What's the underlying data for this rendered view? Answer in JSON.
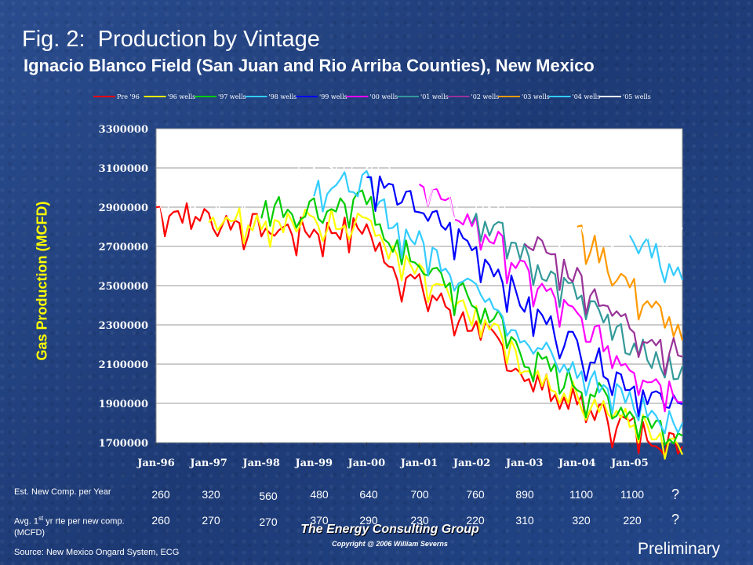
{
  "title": "Fig. 2:  Production by Vintage",
  "subtitle": "Ignacio Blanco Field (San Juan and Rio Arriba Counties), New Mexico",
  "chart_data": {
    "type": "line",
    "ylabel": "Gas Production (MCFD)",
    "xlabel": "",
    "ylim": [
      1700000,
      3300000
    ],
    "y_ticks": [
      "1700000",
      "1900000",
      "2100000",
      "2300000",
      "2500000",
      "2700000",
      "2900000",
      "3100000",
      "3300000"
    ],
    "x_ticks": [
      "Jan-96",
      "Jan-97",
      "Jan-98",
      "Jan-99",
      "Jan-00",
      "Jan-01",
      "Jan-02",
      "Jan-03",
      "Jan-04",
      "Jan-05"
    ],
    "x_range_months": [
      "Jan-96",
      "Jan-06"
    ],
    "grid": "horizontal",
    "legend_position": "top",
    "plot_background": "#ffffff",
    "series": [
      {
        "name": "Pre '96",
        "color": "#ff0000",
        "anchors": [
          [
            "Jan-96",
            2900000
          ],
          [
            "Jan-97",
            2850000
          ],
          [
            "Jan-98",
            2800000
          ],
          [
            "Jan-99",
            2780000
          ],
          [
            "Jan-00",
            2800000
          ],
          [
            "Jul-00",
            2600000
          ],
          [
            "Jan-01",
            2500000
          ],
          [
            "Jan-02",
            2300000
          ],
          [
            "Jul-02",
            2200000
          ],
          [
            "Jan-03",
            2050000
          ],
          [
            "Jan-04",
            1900000
          ],
          [
            "Jan-05",
            1790000
          ],
          [
            "Jan-06",
            1680000
          ]
        ]
      },
      {
        "name": "'96 wells",
        "color": "#ffff00",
        "anchors": [
          [
            "Jan-97",
            2880000
          ],
          [
            "Jan-98",
            2840000
          ],
          [
            "Jan-99",
            2830000
          ],
          [
            "Jan-00",
            2860000
          ],
          [
            "Jul-00",
            2650000
          ],
          [
            "Jan-01",
            2550000
          ],
          [
            "Jan-02",
            2350000
          ],
          [
            "Jul-02",
            2260000
          ],
          [
            "Jan-03",
            2080000
          ],
          [
            "Jan-04",
            1940000
          ],
          [
            "Jan-05",
            1820000
          ],
          [
            "Jan-06",
            1700000
          ]
        ]
      },
      {
        "name": "'97 wells",
        "color": "#00cc00",
        "anchors": [
          [
            "Jan-98",
            2900000
          ],
          [
            "Jan-99",
            2900000
          ],
          [
            "Jan-00",
            2930000
          ],
          [
            "Jul-00",
            2720000
          ],
          [
            "Jan-01",
            2620000
          ],
          [
            "Jan-02",
            2420000
          ],
          [
            "Jul-02",
            2330000
          ],
          [
            "Jan-03",
            2140000
          ],
          [
            "Jan-04",
            2000000
          ],
          [
            "Jan-05",
            1860000
          ],
          [
            "Jan-06",
            1740000
          ]
        ]
      },
      {
        "name": "'98 wells",
        "color": "#33ccff",
        "anchors": [
          [
            "Jan-99",
            3020000
          ],
          [
            "Jan-00",
            3020000
          ],
          [
            "Jul-00",
            2820000
          ],
          [
            "Jan-01",
            2720000
          ],
          [
            "Jan-02",
            2520000
          ],
          [
            "Jul-02",
            2420000
          ],
          [
            "Jan-03",
            2230000
          ],
          [
            "Jan-04",
            2060000
          ],
          [
            "Jan-05",
            1930000
          ],
          [
            "Jan-06",
            1800000
          ]
        ]
      },
      {
        "name": "'99 wells",
        "color": "#0000ff",
        "anchors": [
          [
            "Jan-00",
            3060000
          ],
          [
            "Jul-00",
            2980000
          ],
          [
            "Jan-01",
            2900000
          ],
          [
            "Jan-02",
            2700000
          ],
          [
            "Jul-02",
            2580000
          ],
          [
            "Jan-03",
            2400000
          ],
          [
            "Jan-04",
            2200000
          ],
          [
            "Jan-05",
            2000000
          ],
          [
            "Jan-06",
            1870000
          ]
        ]
      },
      {
        "name": "'00 wells",
        "color": "#ff00ff",
        "anchors": [
          [
            "Jan-01",
            3080000
          ],
          [
            "Jul-01",
            2900000
          ],
          [
            "Jan-02",
            2830000
          ],
          [
            "Jul-02",
            2720000
          ],
          [
            "Jan-03",
            2560000
          ],
          [
            "Jan-04",
            2330000
          ],
          [
            "Jan-05",
            2100000
          ],
          [
            "Jan-06",
            1950000
          ]
        ]
      },
      {
        "name": "'01 wells",
        "color": "#339999",
        "anchors": [
          [
            "Jan-02",
            2870000
          ],
          [
            "Jul-02",
            2780000
          ],
          [
            "Jan-03",
            2660000
          ],
          [
            "Jan-04",
            2450000
          ],
          [
            "Jan-05",
            2200000
          ],
          [
            "Jan-06",
            2050000
          ]
        ]
      },
      {
        "name": "'02 wells",
        "color": "#993399",
        "anchors": [
          [
            "Jan-03",
            2760000
          ],
          [
            "Jan-04",
            2550000
          ],
          [
            "Jan-05",
            2300000
          ],
          [
            "Jan-06",
            2150000
          ]
        ]
      },
      {
        "name": "'03 wells",
        "color": "#ff9900",
        "anchors": [
          [
            "Jan-04",
            2780000
          ],
          [
            "Jul-04",
            2650000
          ],
          [
            "Jan-05",
            2500000
          ],
          [
            "Jul-05",
            2380000
          ],
          [
            "Jan-06",
            2250000
          ]
        ]
      },
      {
        "name": "'04 wells",
        "color": "#33ccff",
        "anchors": [
          [
            "Jan-05",
            2700000
          ],
          [
            "Jul-05",
            2680000
          ],
          [
            "Jan-06",
            2520000
          ]
        ]
      },
      {
        "name": "'05 wells",
        "color": "#ffffff",
        "anchors": [
          [
            "Jan-96",
            2950000
          ],
          [
            "Jan-97",
            2950000
          ],
          [
            "Jan-98",
            3020000
          ],
          [
            "Jan-99",
            3150000
          ],
          [
            "Jan-00",
            3150000
          ],
          [
            "Jan-01",
            3050000
          ],
          [
            "Jan-02",
            2950000
          ],
          [
            "Jan-03",
            2850000
          ],
          [
            "Jan-04",
            2820000
          ],
          [
            "Jan-05",
            2800000
          ],
          [
            "Jan-06",
            2770000
          ]
        ]
      }
    ]
  },
  "table": {
    "row1_label": "Est. New Comp. per Year",
    "row2_label": "Avg. 1st yr rte per new comp. (MCFD)",
    "row1": [
      "260",
      "320",
      "560",
      "480",
      "640",
      "700",
      "760",
      "890",
      "1100",
      "1100"
    ],
    "row2": [
      "260",
      "270",
      "270",
      "370",
      "290",
      "230",
      "220",
      "310",
      "320",
      "220"
    ],
    "unknown": "?"
  },
  "footer": {
    "company": "The Energy Consulting Group",
    "copyright": "Copyright @ 2006 William Severns",
    "source": "Source:  New Mexico Ongard System, ECG",
    "status": "Preliminary"
  }
}
